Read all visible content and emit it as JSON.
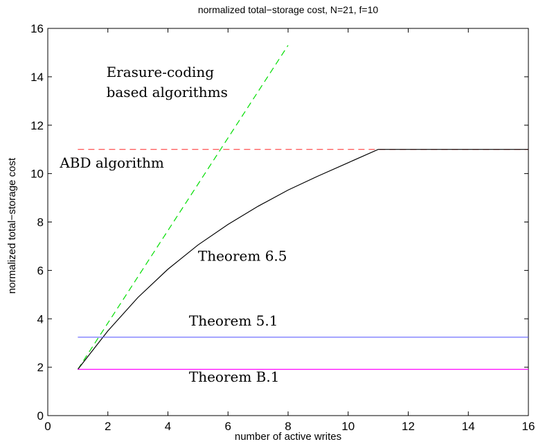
{
  "chart_data": {
    "type": "line",
    "title": "normalized total−storage cost, N=21, f=10",
    "xlabel": "number of active writes",
    "ylabel": "normalized total−storage cost",
    "xlim": [
      0,
      16
    ],
    "ylim": [
      0,
      16
    ],
    "xticks": [
      0,
      2,
      4,
      6,
      8,
      10,
      12,
      14,
      16
    ],
    "yticks": [
      0,
      2,
      4,
      6,
      8,
      10,
      12,
      14,
      16
    ],
    "grid": false,
    "series": [
      {
        "name": "Erasure-coding based algorithms",
        "color": "#00dd00",
        "dash": true,
        "x": [
          1,
          8
        ],
        "y": [
          1.91,
          15.3
        ]
      },
      {
        "name": "ABD algorithm",
        "color": "#ff4040",
        "dash": true,
        "x": [
          1,
          16
        ],
        "y": [
          11,
          11
        ]
      },
      {
        "name": "Theorem 6.5",
        "color": "#000000",
        "dash": false,
        "x": [
          1,
          2,
          3,
          4,
          5,
          6,
          7,
          8,
          9,
          10,
          11,
          12,
          13,
          14,
          15,
          16
        ],
        "y": [
          1.91,
          3.5,
          4.88,
          6.05,
          7.05,
          7.9,
          8.65,
          9.32,
          9.9,
          10.45,
          11,
          11,
          11,
          11,
          11,
          11
        ]
      },
      {
        "name": "Theorem 5.1",
        "color": "#6060ff",
        "dash": false,
        "x": [
          1,
          16
        ],
        "y": [
          3.24,
          3.24
        ]
      },
      {
        "name": "Theorem B.1",
        "color": "#ff00ff",
        "dash": false,
        "x": [
          1,
          16
        ],
        "y": [
          1.91,
          1.91
        ]
      }
    ],
    "annotations": [
      {
        "lines": [
          "Erasure-coding",
          "based algorithms"
        ],
        "x": 1.95,
        "y": 14.0
      },
      {
        "lines": [
          "ABD algorithm"
        ],
        "x": 0.4,
        "y": 10.25
      },
      {
        "lines": [
          "Theorem 6.5"
        ],
        "x": 5.0,
        "y": 6.4
      },
      {
        "lines": [
          "Theorem 5.1"
        ],
        "x": 4.7,
        "y": 3.72
      },
      {
        "lines": [
          "Theorem B.1"
        ],
        "x": 4.7,
        "y": 1.4
      }
    ]
  }
}
